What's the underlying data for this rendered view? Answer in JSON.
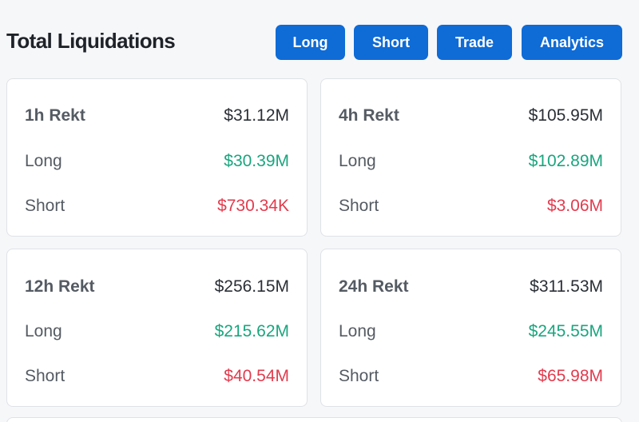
{
  "header": {
    "title": "Total Liquidations",
    "buttons": [
      "Long",
      "Short",
      "Trade",
      "Analytics"
    ]
  },
  "cards": [
    {
      "period": "1h Rekt",
      "total": "$31.12M",
      "long_label": "Long",
      "long": "$30.39M",
      "short_label": "Short",
      "short": "$730.34K"
    },
    {
      "period": "4h Rekt",
      "total": "$105.95M",
      "long_label": "Long",
      "long": "$102.89M",
      "short_label": "Short",
      "short": "$3.06M"
    },
    {
      "period": "12h Rekt",
      "total": "$256.15M",
      "long_label": "Long",
      "long": "$215.62M",
      "short_label": "Short",
      "short": "$40.54M"
    },
    {
      "period": "24h Rekt",
      "total": "$311.53M",
      "long_label": "Long",
      "long": "$245.55M",
      "short_label": "Short",
      "short": "$65.98M"
    }
  ],
  "colors": {
    "button": "#0f6bd6",
    "long": "#1aa57e",
    "short": "#e23b4d"
  }
}
